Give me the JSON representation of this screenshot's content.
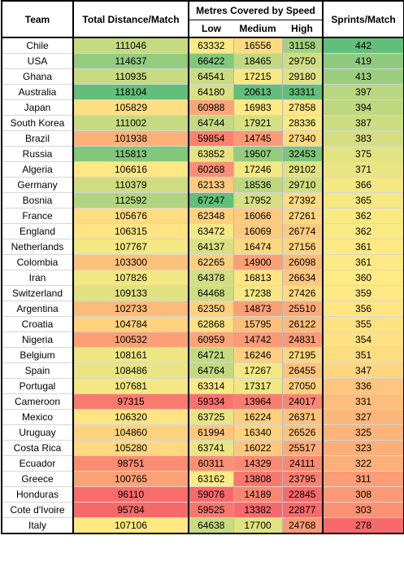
{
  "headers": {
    "team": "Team",
    "distance": "Total Distance/Match",
    "speed": "Metres Covered by Speed",
    "low": "Low",
    "medium": "Medium",
    "high": "High",
    "sprints": "Sprints/Match"
  },
  "rows": [
    {
      "team": "Chile",
      "distance": "111046",
      "low": "63332",
      "medium": "16556",
      "high": "31158",
      "sprints": "442"
    },
    {
      "team": "USA",
      "distance": "114637",
      "low": "66422",
      "medium": "18465",
      "high": "29750",
      "sprints": "419"
    },
    {
      "team": "Ghana",
      "distance": "110935",
      "low": "64541",
      "medium": "17215",
      "high": "29180",
      "sprints": "413"
    },
    {
      "team": "Australia",
      "distance": "118104",
      "low": "64180",
      "medium": "20613",
      "high": "33311",
      "sprints": "397"
    },
    {
      "team": "Japan",
      "distance": "105829",
      "low": "60988",
      "medium": "16983",
      "high": "27858",
      "sprints": "394"
    },
    {
      "team": "South Korea",
      "distance": "111002",
      "low": "64744",
      "medium": "17921",
      "high": "28336",
      "sprints": "387"
    },
    {
      "team": "Brazil",
      "distance": "101938",
      "low": "59854",
      "medium": "14745",
      "high": "27340",
      "sprints": "383"
    },
    {
      "team": "Russia",
      "distance": "115813",
      "low": "63852",
      "medium": "19507",
      "high": "32453",
      "sprints": "375"
    },
    {
      "team": "Algeria",
      "distance": "106616",
      "low": "60268",
      "medium": "17246",
      "high": "29102",
      "sprints": "371"
    },
    {
      "team": "Germany",
      "distance": "110379",
      "low": "62133",
      "medium": "18536",
      "high": "29710",
      "sprints": "366"
    },
    {
      "team": "Bosnia",
      "distance": "112592",
      "low": "67247",
      "medium": "17952",
      "high": "27392",
      "sprints": "365"
    },
    {
      "team": "France",
      "distance": "105676",
      "low": "62348",
      "medium": "16066",
      "high": "27261",
      "sprints": "362"
    },
    {
      "team": "England",
      "distance": "106315",
      "low": "63472",
      "medium": "16069",
      "high": "26774",
      "sprints": "362"
    },
    {
      "team": "Netherlands",
      "distance": "107767",
      "low": "64137",
      "medium": "16474",
      "high": "27156",
      "sprints": "361"
    },
    {
      "team": "Colombia",
      "distance": "103300",
      "low": "62265",
      "medium": "14900",
      "high": "26098",
      "sprints": "361"
    },
    {
      "team": "Iran",
      "distance": "107826",
      "low": "64378",
      "medium": "16813",
      "high": "26634",
      "sprints": "360"
    },
    {
      "team": "Switzerland",
      "distance": "109133",
      "low": "64468",
      "medium": "17238",
      "high": "27426",
      "sprints": "359"
    },
    {
      "team": "Argentina",
      "distance": "102733",
      "low": "62350",
      "medium": "14873",
      "high": "25510",
      "sprints": "356"
    },
    {
      "team": "Croatia",
      "distance": "104784",
      "low": "62868",
      "medium": "15795",
      "high": "26122",
      "sprints": "355"
    },
    {
      "team": "Nigeria",
      "distance": "100532",
      "low": "60959",
      "medium": "14742",
      "high": "24831",
      "sprints": "354"
    },
    {
      "team": "Belgium",
      "distance": "108161",
      "low": "64721",
      "medium": "16246",
      "high": "27195",
      "sprints": "351"
    },
    {
      "team": "Spain",
      "distance": "108486",
      "low": "64764",
      "medium": "17267",
      "high": "26455",
      "sprints": "347"
    },
    {
      "team": "Portugal",
      "distance": "107681",
      "low": "63314",
      "medium": "17317",
      "high": "27050",
      "sprints": "336"
    },
    {
      "team": "Cameroon",
      "distance": "97315",
      "low": "59334",
      "medium": "13964",
      "high": "24017",
      "sprints": "331"
    },
    {
      "team": "Mexico",
      "distance": "106320",
      "low": "63725",
      "medium": "16224",
      "high": "26371",
      "sprints": "327"
    },
    {
      "team": "Uruguay",
      "distance": "104860",
      "low": "61994",
      "medium": "16340",
      "high": "26526",
      "sprints": "325"
    },
    {
      "team": "Costa Rica",
      "distance": "105280",
      "low": "63741",
      "medium": "16022",
      "high": "25517",
      "sprints": "323"
    },
    {
      "team": "Ecuador",
      "distance": "98751",
      "low": "60311",
      "medium": "14329",
      "high": "24111",
      "sprints": "322"
    },
    {
      "team": "Greece",
      "distance": "100765",
      "low": "63162",
      "medium": "13808",
      "high": "23795",
      "sprints": "311"
    },
    {
      "team": "Honduras",
      "distance": "96110",
      "low": "59076",
      "medium": "14189",
      "high": "22845",
      "sprints": "308"
    },
    {
      "team": "Cote d'Ivoire",
      "distance": "95784",
      "low": "59525",
      "medium": "13382",
      "high": "22877",
      "sprints": "303"
    },
    {
      "team": "Italy",
      "distance": "107106",
      "low": "64638",
      "medium": "17700",
      "high": "24768",
      "sprints": "278"
    }
  ]
}
